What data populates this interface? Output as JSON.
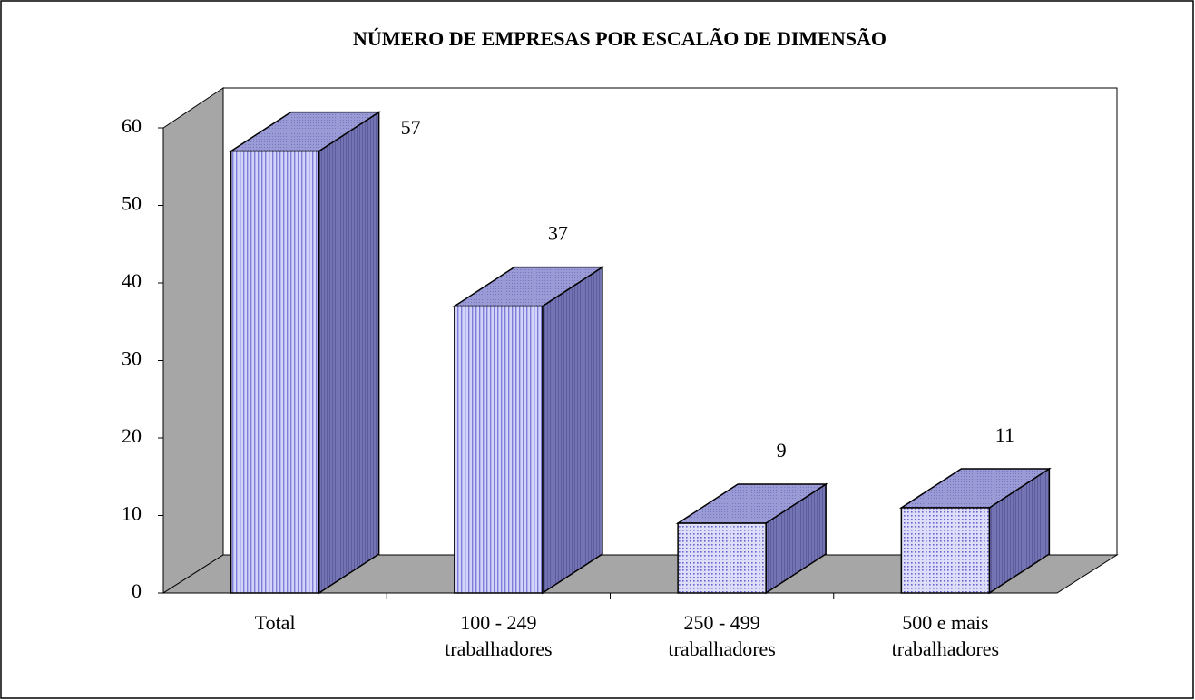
{
  "chart_data": {
    "type": "bar3d",
    "title": "NÚMERO DE EMPRESAS POR ESCALÃO DE DIMENSÃO",
    "categories": [
      [
        "Total"
      ],
      [
        "100 - 249",
        "trabalhadores"
      ],
      [
        "250 - 499",
        "trabalhadores"
      ],
      [
        "500 e mais",
        "trabalhadores"
      ]
    ],
    "values": [
      57,
      37,
      9,
      11
    ],
    "fill_patterns": [
      "stripes",
      "stripes",
      "dots",
      "dots"
    ],
    "color": "#c4c4f6",
    "ylim": [
      0,
      60
    ],
    "yticks": [
      0,
      10,
      20,
      30,
      40,
      50,
      60
    ]
  }
}
